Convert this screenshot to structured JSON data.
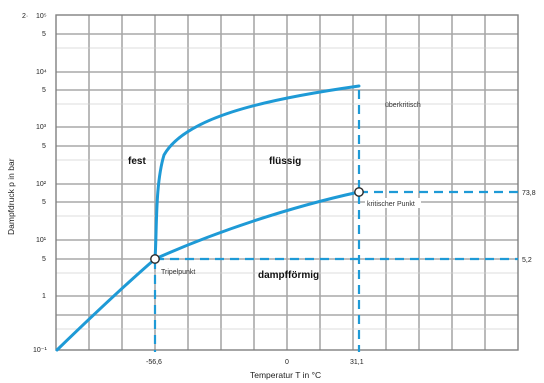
{
  "chart_data": {
    "type": "phase-diagram",
    "xlabel": "Temperatur T in °C",
    "ylabel": "Dampfdruck p in bar",
    "yscale": "log",
    "ylim": [
      0.1,
      20000
    ],
    "xlim": [
      -110,
      50
    ],
    "x_ticks": [
      "-56,6",
      "0",
      "31,1"
    ],
    "y_ticks": [
      "10⁻¹",
      "1",
      "5",
      "10¹",
      "5",
      "10²",
      "5",
      "10³",
      "5",
      "10⁴",
      "5",
      "10⁵",
      "2·"
    ],
    "right_ticks": [
      "73,8",
      "5,2"
    ],
    "regions": {
      "solid": "fest",
      "liquid": "flüssig",
      "vapor": "dampfförmig",
      "supercritical": "überkritisch"
    },
    "annotations": {
      "triple_point": "Tripelpunkt",
      "critical_point": "kritischer Punkt"
    },
    "triple_point": {
      "T": -56.6,
      "p": 5.2
    },
    "critical_point": {
      "T": 31.1,
      "p": 73.8
    },
    "series": [
      {
        "values": [
          [
            -110,
            0.1
          ],
          [
            -95,
            0.4
          ],
          [
            -80,
            1.2
          ],
          [
            -65,
            3.0
          ],
          [
            -56.6,
            5.2
          ]
        ]
      },
      {
        "values": [
          [
            -56.6,
            5.2
          ],
          [
            -40,
            10
          ],
          [
            -20,
            20
          ],
          [
            0,
            35
          ],
          [
            20,
            57
          ],
          [
            31.1,
            73.8
          ]
        ]
      },
      {
        "values": [
          [
            -56.6,
            5.2
          ],
          [
            -56.3,
            30
          ],
          [
            -55,
            350
          ],
          [
            -50,
            1100
          ],
          [
            -35,
            2300
          ],
          [
            -10,
            3400
          ],
          [
            10,
            4100
          ],
          [
            31.1,
            4800
          ]
        ]
      }
    ]
  }
}
